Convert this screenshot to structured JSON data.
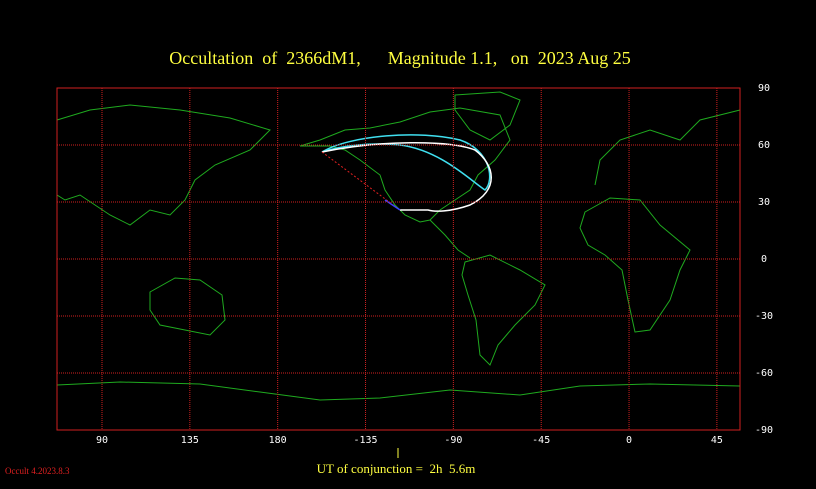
{
  "map_data": {
    "title": "Occultation  of  2366dM1,      Magnitude 1.1,   on  2023 Aug 25",
    "lon_ticks": [
      90,
      135,
      180,
      -135,
      -90,
      -45,
      0,
      45
    ],
    "lat_ticks": [
      90,
      60,
      30,
      0,
      -30,
      -60,
      -90
    ],
    "conjunction_label": "UT of conjunction =  2h  5.6m",
    "version": "Occult 4.2023.8.3"
  }
}
